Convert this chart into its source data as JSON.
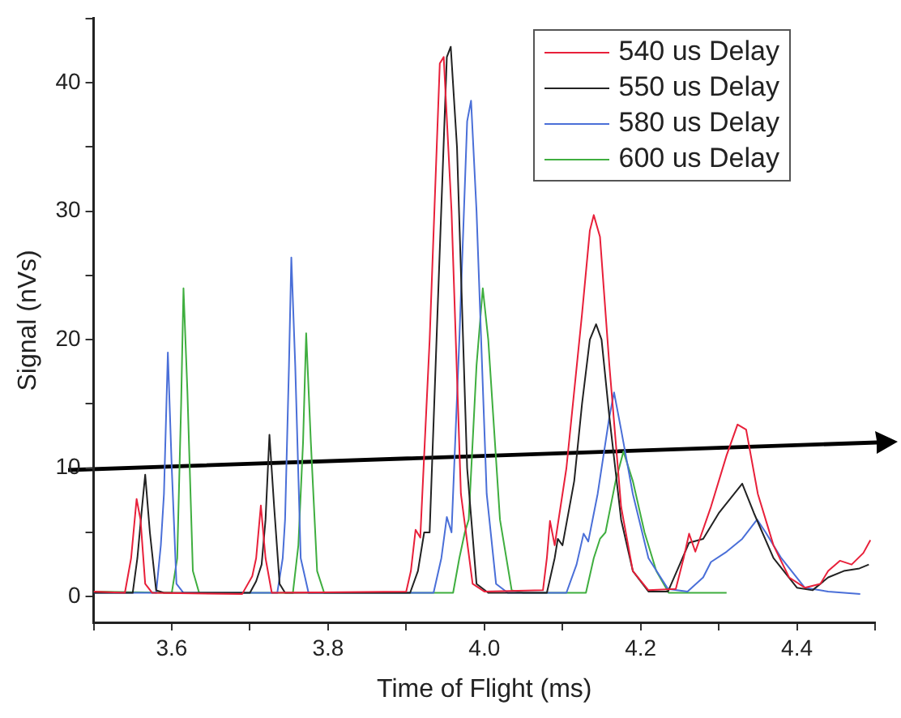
{
  "chart_data": {
    "type": "line",
    "xlabel": "Time of Flight (ms)",
    "ylabel": "Signal (nVs)",
    "xlim": [
      3.5,
      4.5
    ],
    "ylim": [
      -2,
      45
    ],
    "xticks": [
      {
        "value": 3.5,
        "label": null
      },
      {
        "value": 3.6,
        "label": "3.6"
      },
      {
        "value": 3.7,
        "label": null
      },
      {
        "value": 3.8,
        "label": "3.8"
      },
      {
        "value": 3.9,
        "label": null
      },
      {
        "value": 4.0,
        "label": "4.0"
      },
      {
        "value": 4.1,
        "label": null
      },
      {
        "value": 4.2,
        "label": "4.2"
      },
      {
        "value": 4.3,
        "label": null
      },
      {
        "value": 4.4,
        "label": "4.4"
      },
      {
        "value": 4.5,
        "label": null
      }
    ],
    "yticks": [
      0,
      {
        "value": 5,
        "label": null
      },
      10,
      {
        "value": 15,
        "label": null
      },
      20,
      {
        "value": 25,
        "label": null
      },
      30,
      {
        "value": 35,
        "label": null
      },
      40,
      {
        "value": 45,
        "label": null
      }
    ],
    "grid": false,
    "legend": "top right",
    "marker": "none",
    "line_style": "solid",
    "series": [
      {
        "name": "540 us Delay",
        "color": "#e8203a",
        "x": [
          3.5,
          3.54,
          3.548,
          3.555,
          3.56,
          3.566,
          3.575,
          3.69,
          3.703,
          3.708,
          3.714,
          3.72,
          3.728,
          3.9,
          3.906,
          3.912,
          3.918,
          3.93,
          3.943,
          3.948,
          3.958,
          3.97,
          3.985,
          4.0,
          4.075,
          4.08,
          4.084,
          4.09,
          4.105,
          4.125,
          4.135,
          4.14,
          4.148,
          4.16,
          4.175,
          4.19,
          4.21,
          4.245,
          4.255,
          4.262,
          4.27,
          4.29,
          4.31,
          4.324,
          4.335,
          4.35,
          4.37,
          4.39,
          4.41,
          4.43,
          4.44,
          4.455,
          4.47,
          4.485,
          4.494
        ],
        "values": [
          0.4,
          0.3,
          3,
          7.6,
          6,
          1,
          0.3,
          0.2,
          1.6,
          3,
          7.1,
          3,
          0.3,
          0.4,
          2,
          5.2,
          4.6,
          20,
          41.5,
          42,
          30,
          8,
          1,
          0.4,
          0.5,
          3,
          5.9,
          4,
          10,
          22,
          28.5,
          29.7,
          28,
          18,
          7,
          2,
          0.5,
          0.6,
          3,
          4.9,
          3.5,
          7,
          11,
          13.4,
          13,
          8,
          4,
          1.5,
          0.7,
          1,
          2,
          2.8,
          2.5,
          3.4,
          4.4
        ]
      },
      {
        "name": "550 us Delay",
        "color": "#222222",
        "x": [
          3.5,
          3.55,
          3.556,
          3.562,
          3.566,
          3.572,
          3.58,
          3.59,
          3.7,
          3.708,
          3.715,
          3.72,
          3.725,
          3.731,
          3.738,
          3.745,
          3.905,
          3.915,
          3.923,
          3.93,
          3.94,
          3.952,
          3.957,
          3.965,
          3.978,
          3.99,
          4.005,
          4.08,
          4.09,
          4.094,
          4.1,
          4.115,
          4.125,
          4.135,
          4.143,
          4.15,
          4.16,
          4.175,
          4.19,
          4.21,
          4.235,
          4.25,
          4.262,
          4.28,
          4.3,
          4.33,
          4.345,
          4.37,
          4.4,
          4.42,
          4.44,
          4.46,
          4.48,
          4.492
        ],
        "values": [
          0.3,
          0.3,
          3,
          7,
          9.5,
          5,
          0.5,
          0.3,
          0.3,
          1.2,
          2.5,
          6,
          12.6,
          7,
          1,
          0.3,
          0.3,
          2,
          5,
          5,
          22,
          42,
          42.8,
          35,
          10,
          1,
          0.3,
          0.3,
          3,
          4.5,
          4,
          9,
          15,
          20,
          21.2,
          20,
          14,
          6,
          2,
          0.4,
          0.4,
          2.5,
          4.2,
          4.5,
          6.5,
          8.8,
          6.5,
          3,
          0.7,
          0.5,
          1.5,
          2,
          2.2,
          2.5
        ]
      },
      {
        "name": "580 us Delay",
        "color": "#4a6fd8",
        "x": [
          3.5,
          3.58,
          3.586,
          3.59,
          3.595,
          3.6,
          3.606,
          3.615,
          3.735,
          3.742,
          3.745,
          3.75,
          3.753,
          3.758,
          3.765,
          3.775,
          3.935,
          3.945,
          3.952,
          3.958,
          3.968,
          3.978,
          3.983,
          3.99,
          4.003,
          4.015,
          4.03,
          4.105,
          4.118,
          4.127,
          4.133,
          4.145,
          4.16,
          4.166,
          4.175,
          4.19,
          4.21,
          4.235,
          4.26,
          4.28,
          4.29,
          4.31,
          4.33,
          4.349,
          4.36,
          4.38,
          4.41,
          4.44,
          4.481
        ],
        "values": [
          0.3,
          0.3,
          4,
          8,
          19,
          10,
          1,
          0.3,
          0.3,
          3,
          6,
          18,
          26.4,
          18,
          3,
          0.3,
          0.3,
          3,
          6.2,
          5,
          20,
          37,
          38.6,
          30,
          8,
          1,
          0.3,
          0.3,
          2.5,
          4.9,
          4.3,
          8,
          14,
          15.9,
          13,
          8,
          3,
          0.6,
          0.4,
          1.5,
          2.7,
          3.5,
          4.5,
          6,
          5,
          3,
          0.7,
          0.4,
          0.2
        ]
      },
      {
        "name": "600 us Delay",
        "color": "#3fae3f",
        "x": [
          3.5,
          3.6,
          3.607,
          3.612,
          3.615,
          3.62,
          3.627,
          3.635,
          3.755,
          3.762,
          3.768,
          3.772,
          3.778,
          3.786,
          3.795,
          3.96,
          3.968,
          3.975,
          3.98,
          3.99,
          3.998,
          4.005,
          4.02,
          4.035,
          4.05,
          4.13,
          4.14,
          4.148,
          4.155,
          4.168,
          4.178,
          4.19,
          4.205,
          4.22,
          4.236,
          4.31
        ],
        "values": [
          0.4,
          0.3,
          3,
          15,
          24,
          16,
          2,
          0.3,
          0.3,
          4,
          12,
          20.5,
          12,
          2,
          0.3,
          0.3,
          3,
          5,
          6,
          18,
          24,
          20,
          6,
          0.5,
          0.3,
          0.3,
          3,
          4.5,
          5,
          9,
          11.3,
          9,
          5,
          2,
          0.3,
          0.3
        ]
      }
    ]
  }
}
